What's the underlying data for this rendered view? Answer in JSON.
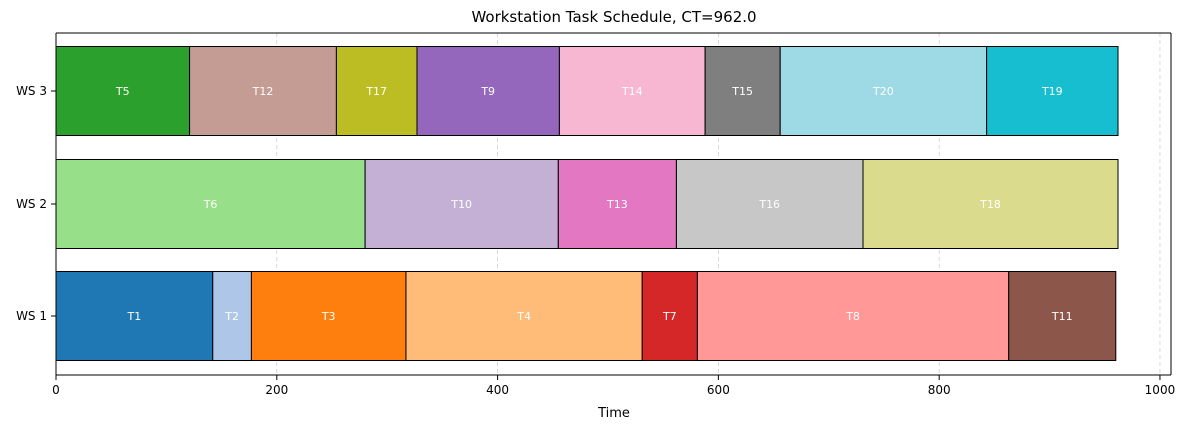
{
  "chart_data": {
    "type": "bar",
    "orientation": "horizontal",
    "stacked": true,
    "title": "Workstation Task Schedule, CT=962.0",
    "xlabel": "Time",
    "ylabel": "",
    "xlim": [
      0,
      1010
    ],
    "xticks": [
      0,
      200,
      400,
      600,
      800,
      1000
    ],
    "xtick_labels": [
      "0",
      "200",
      "400",
      "600",
      "800",
      "1000"
    ],
    "grid": "vertical dashed",
    "legend": "none",
    "categories": [
      "WS 1",
      "WS 2",
      "WS 3"
    ],
    "tasks": [
      {
        "station": "WS 1",
        "label": "T1",
        "start": 0,
        "end": 142,
        "color": "#1f77b4"
      },
      {
        "station": "WS 1",
        "label": "T2",
        "start": 142,
        "end": 177,
        "color": "#aec7e8"
      },
      {
        "station": "WS 1",
        "label": "T3",
        "start": 177,
        "end": 317,
        "color": "#ff7f0e"
      },
      {
        "station": "WS 1",
        "label": "T4",
        "start": 317,
        "end": 531,
        "color": "#ffbb78"
      },
      {
        "station": "WS 1",
        "label": "T7",
        "start": 531,
        "end": 581,
        "color": "#d62728"
      },
      {
        "station": "WS 1",
        "label": "T8",
        "start": 581,
        "end": 863,
        "color": "#ff9896"
      },
      {
        "station": "WS 1",
        "label": "T11",
        "start": 863,
        "end": 960,
        "color": "#8c564b"
      },
      {
        "station": "WS 2",
        "label": "T6",
        "start": 0,
        "end": 280,
        "color": "#98df8a"
      },
      {
        "station": "WS 2",
        "label": "T10",
        "start": 280,
        "end": 455,
        "color": "#c5b0d5"
      },
      {
        "station": "WS 2",
        "label": "T13",
        "start": 455,
        "end": 562,
        "color": "#e377c2"
      },
      {
        "station": "WS 2",
        "label": "T16",
        "start": 562,
        "end": 731,
        "color": "#c7c7c7"
      },
      {
        "station": "WS 2",
        "label": "T18",
        "start": 731,
        "end": 962,
        "color": "#dbdb8d"
      },
      {
        "station": "WS 3",
        "label": "T5",
        "start": 0,
        "end": 121,
        "color": "#2ca02c"
      },
      {
        "station": "WS 3",
        "label": "T12",
        "start": 121,
        "end": 254,
        "color": "#c49c94"
      },
      {
        "station": "WS 3",
        "label": "T17",
        "start": 254,
        "end": 327,
        "color": "#bcbd22"
      },
      {
        "station": "WS 3",
        "label": "T9",
        "start": 327,
        "end": 456,
        "color": "#9467bd"
      },
      {
        "station": "WS 3",
        "label": "T14",
        "start": 456,
        "end": 588,
        "color": "#f7b6d2"
      },
      {
        "station": "WS 3",
        "label": "T15",
        "start": 588,
        "end": 656,
        "color": "#7f7f7f"
      },
      {
        "station": "WS 3",
        "label": "T20",
        "start": 656,
        "end": 843,
        "color": "#9edae5"
      },
      {
        "station": "WS 3",
        "label": "T19",
        "start": 843,
        "end": 962,
        "color": "#17becf"
      }
    ]
  }
}
